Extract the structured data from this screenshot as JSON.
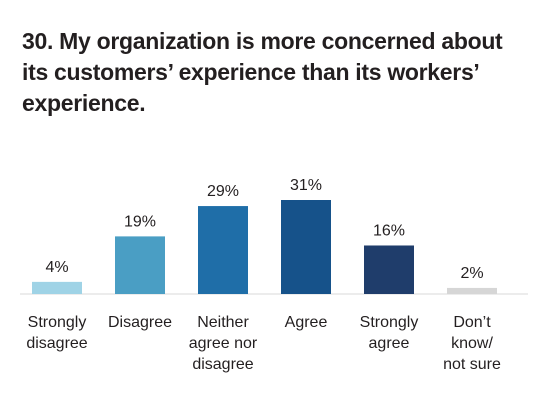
{
  "chart_data": {
    "type": "bar",
    "title": "30. My organization is more concerned about its customers’ experience than its workers’ experience.",
    "categories": [
      [
        "Strongly",
        "disagree"
      ],
      [
        "Disagree"
      ],
      [
        "Neither",
        "agree nor",
        "disagree"
      ],
      [
        "Agree"
      ],
      [
        "Strongly",
        "agree"
      ],
      [
        "Don’t",
        "know/",
        "not sure"
      ]
    ],
    "values": [
      4,
      19,
      29,
      31,
      16,
      2
    ],
    "value_labels": [
      "4%",
      "19%",
      "29%",
      "31%",
      "16%",
      "2%"
    ],
    "colors": [
      "#9fd3e6",
      "#4a9ec4",
      "#1f6ea8",
      "#16528a",
      "#1f3d6b",
      "#d6d6d6"
    ],
    "xlabel": "",
    "ylabel": "",
    "ylim": [
      0,
      31
    ],
    "grid": false,
    "legend": "none"
  }
}
